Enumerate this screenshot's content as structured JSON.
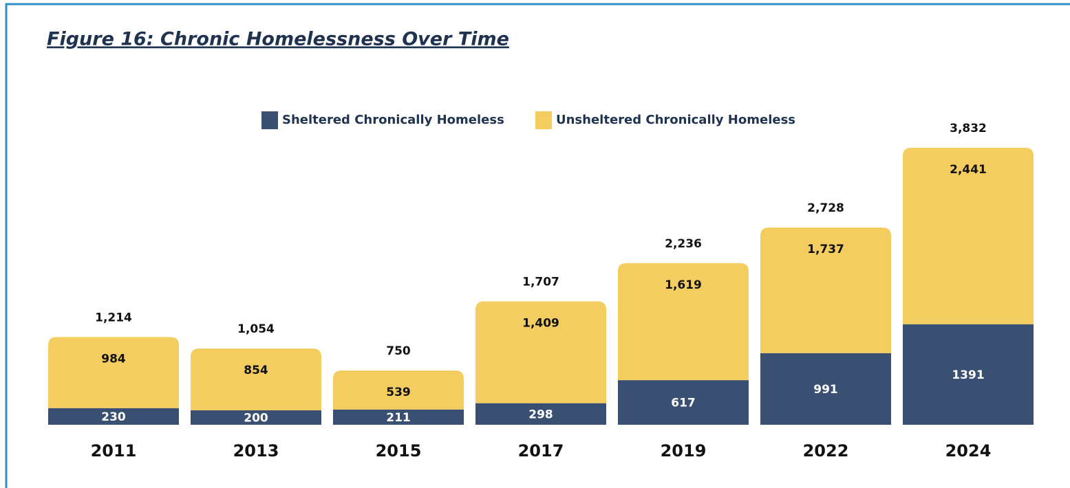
{
  "chart_data": {
    "type": "stacked_bar",
    "title": "Figure 16: Chronic Homelessness Over Time",
    "categories": [
      "2011",
      "2013",
      "2015",
      "2017",
      "2019",
      "2022",
      "2024"
    ],
    "series": [
      {
        "name": "Sheltered Chronically Homeless",
        "color": "#3a5073",
        "values": [
          230,
          200,
          211,
          298,
          617,
          991,
          1391
        ]
      },
      {
        "name": "Unsheltered Chronically Homeless",
        "color": "#f3cd5f",
        "values": [
          984,
          854,
          539,
          1409,
          1619,
          1737,
          2441
        ],
        "value_labels": [
          "984",
          "854",
          "539",
          "1,409",
          "1,619",
          "1,737",
          "2,441"
        ]
      }
    ],
    "totals": [
      1214,
      1054,
      750,
      1707,
      2236,
      2728,
      3832
    ],
    "totals_labels": [
      "1,214",
      "1,054",
      "750",
      "1,707",
      "2,236",
      "2,728",
      "3,832"
    ],
    "legend": "top"
  }
}
